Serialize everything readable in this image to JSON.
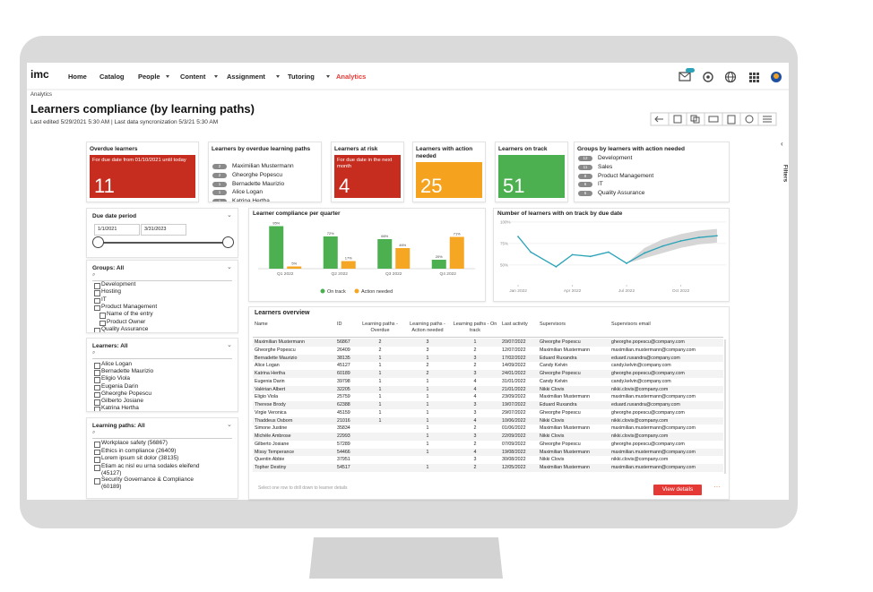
{
  "nav": {
    "logo": "imc",
    "items": [
      "Home",
      "Catalog",
      "People",
      "Content",
      "Assignment",
      "Tutoring"
    ],
    "active": "Analytics"
  },
  "header": {
    "breadcrumb": "Analytics",
    "title": "Learners compliance (by learning paths)",
    "subtitle": "Last edited 5/29/2021 5:30 AM | Last data syncronization 5/3/21 5:30 AM"
  },
  "filters_tab": "Filters",
  "kpis": {
    "overdue": {
      "title": "Overdue learners",
      "note": "For due date from 01/10/2021 until today",
      "value": 11
    },
    "overdue_paths": {
      "title": "Learners by overdue learning paths",
      "items": [
        {
          "count": 2,
          "name": "Maximilian Mustermann"
        },
        {
          "count": 2,
          "name": "Gheorghe Popescu"
        },
        {
          "count": 1,
          "name": "Bernadette Maurizio"
        },
        {
          "count": 1,
          "name": "Alice Logan"
        },
        {
          "count": 1,
          "name": "Katrina Hertha"
        }
      ]
    },
    "at_risk": {
      "title": "Learners at risk",
      "note": "For due date in the next month",
      "value": 4
    },
    "action_needed": {
      "title": "Learners with action needed",
      "value": 25
    },
    "on_track": {
      "title": "Learners on track",
      "value": 51
    },
    "groups": {
      "title": "Groups by learners with action needed",
      "items": [
        {
          "count": 12,
          "name": "Development"
        },
        {
          "count": 11,
          "name": "Sales"
        },
        {
          "count": 8,
          "name": "Product Management"
        },
        {
          "count": 6,
          "name": "IT"
        },
        {
          "count": 5,
          "name": "Quality Assurance"
        }
      ]
    }
  },
  "sidebar": {
    "due_date": {
      "title": "Due date period",
      "from": "1/1/2021",
      "to": "3/31/2023"
    },
    "groups": {
      "title": "Groups: All",
      "items": [
        "Development",
        "Hosting",
        "IT",
        "Product Management",
        "Name of the entry",
        "Product Owner",
        "Quality Assurance"
      ]
    },
    "learners": {
      "title": "Learners: All",
      "items": [
        "Alice Logan",
        "Bernadette Maurizio",
        "Eligio Viola",
        "Eugenia Darin",
        "Gheorghe Popescu",
        "Gilberto Josiane",
        "Katrina Hertha"
      ]
    },
    "learning_paths": {
      "title": "Learning paths: All",
      "items": [
        "Workplace safety (56867)",
        "Ethics in compliance (26409)",
        "Lorem ipsum sit dolor (38135)",
        "Etiam ac nisl eu urna sodales eleifend (45127)",
        "Security Governance & Compliance (60189)"
      ]
    }
  },
  "chart_data": [
    {
      "type": "bar",
      "title": "Learner compliance per quarter",
      "categories": [
        "Q1 2022",
        "Q2 2022",
        "Q3 2022",
        "Q4 2022"
      ],
      "series": [
        {
          "name": "On track",
          "color": "#4caf50",
          "values": [
            95,
            72,
            66,
            20
          ],
          "value_labels": [
            "95%",
            "72%",
            "66%",
            "20%"
          ]
        },
        {
          "name": "Action needed",
          "color": "#f5a623",
          "values": [
            5,
            17,
            46,
            71
          ],
          "value_labels": [
            "5%",
            "17%",
            "46%",
            "71%"
          ]
        }
      ],
      "ylim": [
        0,
        100
      ],
      "legend": "bottom"
    },
    {
      "type": "line",
      "title": "Number of learners with on track by due date",
      "x": [
        0,
        0.7,
        2.1,
        3,
        4,
        5,
        6,
        7,
        8,
        9,
        10,
        11
      ],
      "series": [
        {
          "color": "#2aa3b8",
          "values": [
            83,
            65,
            48,
            62,
            60,
            65,
            52,
            64,
            72,
            78,
            82,
            84
          ]
        }
      ],
      "band": {
        "color": "#d6d6d6",
        "x": [
          6,
          7,
          8,
          9,
          10,
          11
        ],
        "upper": [
          52,
          70,
          80,
          86,
          90,
          92
        ],
        "lower": [
          52,
          58,
          64,
          70,
          74,
          76
        ]
      },
      "xlim": [
        -0.5,
        11.5
      ],
      "xticks": [
        {
          "value": 0,
          "label": "Jan 2022"
        },
        {
          "value": 3,
          "label": "Apr 2022"
        },
        {
          "value": 6,
          "label": "Jul 2022"
        },
        {
          "value": 9,
          "label": "Oct 2022"
        }
      ],
      "ylim": [
        27,
        103
      ],
      "yticks": [
        {
          "value": 50,
          "label": "50%"
        },
        {
          "value": 75,
          "label": "75%"
        },
        {
          "value": 100,
          "label": "100%"
        }
      ],
      "grid": true
    }
  ],
  "table": {
    "title": "Learners overview",
    "columns": [
      "Name",
      "ID",
      "Learning paths - Overdue",
      "Learning paths - Action needed",
      "Learning paths - On track",
      "Last activity",
      "Supervisors",
      "Supervisors email"
    ],
    "rows": [
      [
        "Maximilian Mustermann",
        "56867",
        "2",
        "3",
        "1",
        "20/07/2022",
        "Gheorghe Popescu",
        "gheorghe.popescu@company.com"
      ],
      [
        "Gheorghe Popescu",
        "26409",
        "2",
        "3",
        "2",
        "12/07/2022",
        "Maximilian Mustermann",
        "maximilian.mustermann@company.com"
      ],
      [
        "Bernadette Maurizio",
        "38135",
        "1",
        "1",
        "3",
        "17/02/2022",
        "Eduard Ruxandra",
        "eduard.ruxandra@company.com"
      ],
      [
        "Alice Logan",
        "45127",
        "1",
        "2",
        "2",
        "14/09/2022",
        "Candy Kelvin",
        "candy.kelvin@company.com"
      ],
      [
        "Katrina Hertha",
        "60189",
        "1",
        "2",
        "3",
        "24/01/2022",
        "Gheorghe Popescu",
        "gheorghe.popescu@company.com"
      ],
      [
        "Eugenia Darin",
        "39798",
        "1",
        "1",
        "4",
        "31/01/2022",
        "Candy Kelvin",
        "candy.kelvin@company.com"
      ],
      [
        "Valérian Albert",
        "32205",
        "1",
        "1",
        "4",
        "21/01/2022",
        "Nikki Clovis",
        "nikki.clovis@company.com"
      ],
      [
        "Eligio Viola",
        "25759",
        "1",
        "1",
        "4",
        "23/09/2022",
        "Maximilian Mustermann",
        "maximilian.mustermann@company.com"
      ],
      [
        "Therese Brody",
        "62388",
        "1",
        "1",
        "3",
        "19/07/2022",
        "Eduard Ruxandra",
        "eduard.ruxandra@company.com"
      ],
      [
        "Virgie Veronica",
        "45159",
        "1",
        "1",
        "3",
        "29/07/2022",
        "Gheorghe Popescu",
        "gheorghe.popescu@company.com"
      ],
      [
        "Thaddeus Osborn",
        "21016",
        "1",
        "1",
        "4",
        "10/06/2022",
        "Nikki Clovis",
        "nikki.clovis@company.com"
      ],
      [
        "Simone Justine",
        "35834",
        null,
        "1",
        "2",
        "01/06/2022",
        "Maximilian Mustermann",
        "maximilian.mustermann@company.com"
      ],
      [
        "Michèle Ambrose",
        "22993",
        null,
        "1",
        "3",
        "22/09/2022",
        "Nikki Clovis",
        "nikki.clovis@company.com"
      ],
      [
        "Gilberto Josiane",
        "57289",
        null,
        "1",
        "2",
        "07/09/2022",
        "Gheorghe Popescu",
        "gheorghe.popescu@company.com"
      ],
      [
        "Missy Temperance",
        "54466",
        null,
        "1",
        "4",
        "19/08/2022",
        "Maximilian Mustermann",
        "maximilian.mustermann@company.com"
      ],
      [
        "Quentin Abbie",
        "37951",
        null,
        null,
        "3",
        "30/08/2022",
        "Nikki Clovis",
        "nikki.clovis@company.com"
      ],
      [
        "Topher Destiny",
        "54517",
        null,
        "1",
        "2",
        "12/05/2022",
        "Maximilian Mustermann",
        "maximilian.mustermann@company.com"
      ]
    ],
    "hint": "Select one row to drill down to learner details",
    "button": "View details"
  }
}
